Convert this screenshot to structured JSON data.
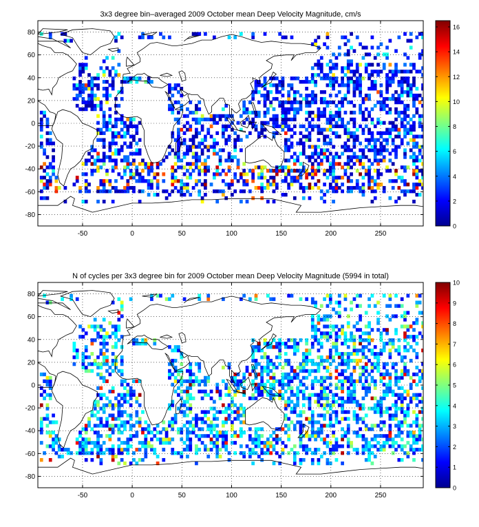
{
  "chart_data": [
    {
      "type": "heatmap",
      "title": "3x3 degree bin–averaged 2009 October mean Deep Velocity Magnitude, cm/s",
      "x_ticks": [
        -50,
        0,
        50,
        100,
        150,
        200,
        250
      ],
      "y_ticks": [
        -80,
        -60,
        -40,
        -20,
        0,
        20,
        40,
        60,
        80
      ],
      "xlim": [
        -95,
        293
      ],
      "ylim": [
        -90,
        90
      ],
      "grid": true,
      "bin_size_deg": 3,
      "colorbar": {
        "range": [
          0,
          16.5
        ],
        "ticks": [
          0,
          2,
          4,
          6,
          8,
          10,
          12,
          14,
          16
        ]
      },
      "value_distribution": {
        "typical": 3,
        "high_bands_lat": [
          -60,
          -35
        ],
        "max": 16.5
      }
    },
    {
      "type": "heatmap",
      "title": "N of cycles per 3x3 degree bin for 2009 October mean Deep Velocity Magnitude (5994 in total)",
      "x_ticks": [
        -50,
        0,
        50,
        100,
        150,
        200,
        250
      ],
      "y_ticks": [
        -80,
        -60,
        -40,
        -20,
        0,
        20,
        40,
        60,
        80
      ],
      "xlim": [
        -95,
        293
      ],
      "ylim": [
        -90,
        90
      ],
      "grid": true,
      "bin_size_deg": 3,
      "total_cycles": 5994,
      "colorbar": {
        "range": [
          0,
          10
        ],
        "ticks": [
          0,
          1,
          2,
          3,
          4,
          5,
          6,
          7,
          8,
          9,
          10
        ]
      },
      "value_distribution": {
        "typical": 3,
        "max": 10
      }
    }
  ]
}
